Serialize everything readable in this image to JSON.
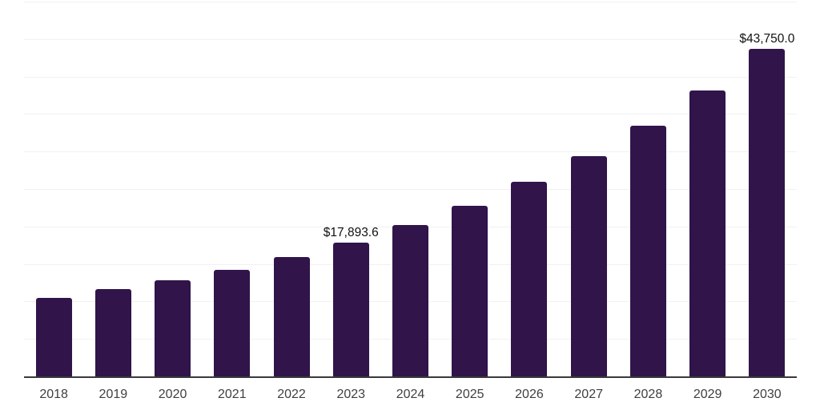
{
  "chart_data": {
    "type": "bar",
    "title": "",
    "xlabel": "",
    "ylabel": "",
    "categories": [
      "2018",
      "2019",
      "2020",
      "2021",
      "2022",
      "2023",
      "2024",
      "2025",
      "2026",
      "2027",
      "2028",
      "2029",
      "2030"
    ],
    "values": [
      10450,
      11620,
      12790,
      14170,
      15880,
      17893.6,
      20140,
      22720,
      25920,
      29400,
      33490,
      38170,
      43750
    ],
    "point_labels": [
      "",
      "",
      "",
      "",
      "",
      "$17,893.6",
      "",
      "",
      "",
      "",
      "",
      "",
      "$43,750.0"
    ],
    "ylim": [
      0,
      50000
    ],
    "gridline_interval": 5000,
    "grid": "horizontal-only",
    "legend": "none",
    "y_axis_tick_labels": "none",
    "colors": {
      "bar_fill": "#30144a",
      "gridline": "#f1f1f4",
      "x_axis_line": "#3a3a3a",
      "tick_label": "#3f3f3f",
      "value_label": "#111111",
      "background": "#ffffff"
    }
  }
}
